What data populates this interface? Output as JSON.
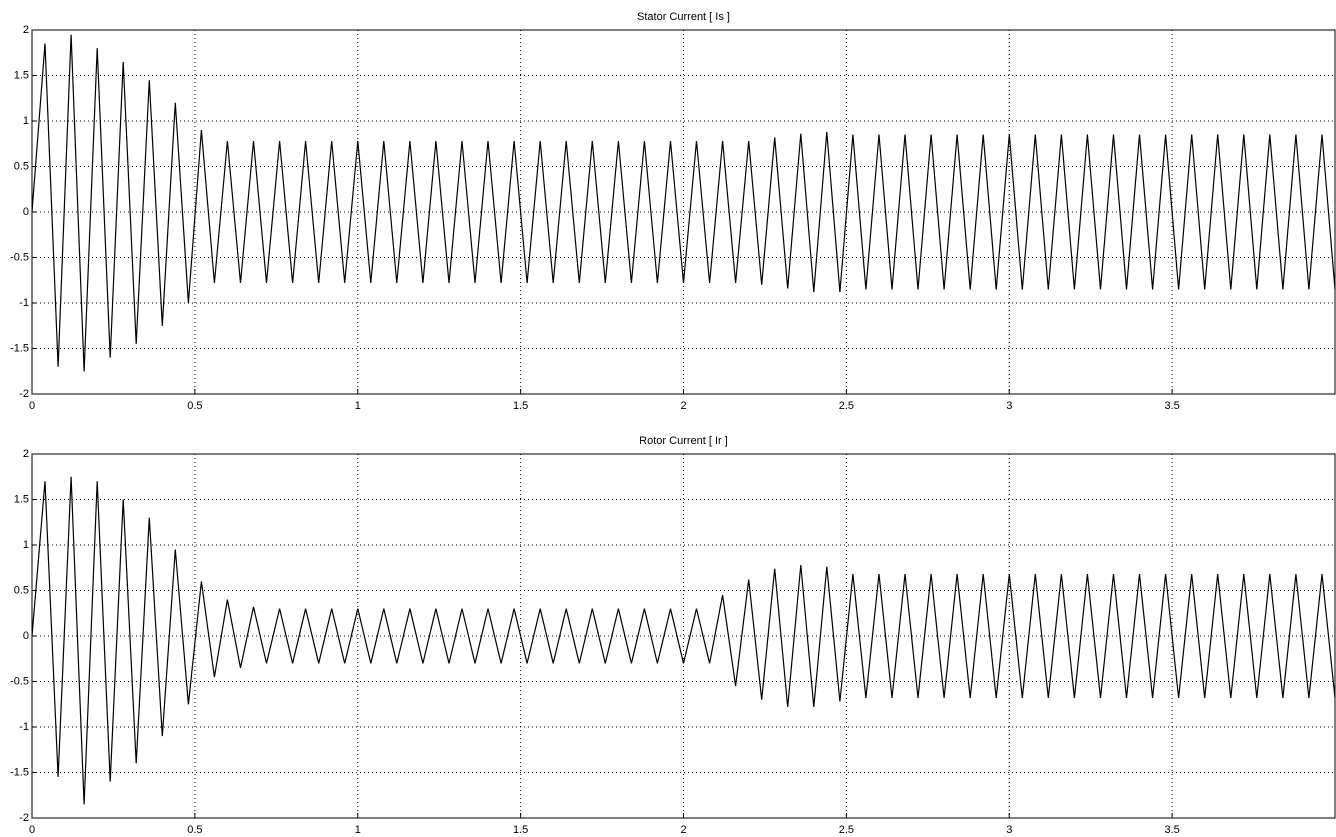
{
  "chart_data": [
    {
      "type": "line",
      "title": "Stator Current [ Is ]",
      "color": "#000000",
      "grid": true,
      "xlim": [
        0,
        4
      ],
      "ylim": [
        -2,
        2
      ],
      "xticks": [
        0,
        0.5,
        1,
        1.5,
        2,
        2.5,
        3,
        3.5
      ],
      "yticks": [
        -2,
        -1.5,
        -1,
        -0.5,
        0,
        0.5,
        1,
        1.5,
        2
      ],
      "x": [
        0,
        0.04,
        0.08,
        0.12,
        0.16,
        0.2,
        0.24,
        0.28,
        0.32,
        0.36,
        0.4,
        0.44,
        0.48,
        0.52,
        0.56,
        0.6,
        0.64,
        0.68,
        0.72,
        0.76,
        0.8,
        0.84,
        0.88,
        0.92,
        0.96,
        1,
        1.04,
        1.08,
        1.12,
        1.16,
        1.2,
        1.24,
        1.28,
        1.32,
        1.36,
        1.4,
        1.44,
        1.48,
        1.52,
        1.56,
        1.6,
        1.64,
        1.68,
        1.72,
        1.76,
        1.8,
        1.84,
        1.88,
        1.92,
        1.96,
        2,
        2.04,
        2.08,
        2.12,
        2.16,
        2.2,
        2.24,
        2.28,
        2.32,
        2.36,
        2.4,
        2.44,
        2.48,
        2.52,
        2.56,
        2.6,
        2.64,
        2.68,
        2.72,
        2.76,
        2.8,
        2.84,
        2.88,
        2.92,
        2.96,
        3,
        3.04,
        3.08,
        3.12,
        3.16,
        3.2,
        3.24,
        3.28,
        3.32,
        3.36,
        3.4,
        3.44,
        3.48,
        3.52,
        3.56,
        3.6,
        3.64,
        3.68,
        3.72,
        3.76,
        3.8,
        3.84,
        3.88,
        3.92,
        3.96,
        4
      ],
      "values": [
        0,
        1.85,
        -1.7,
        1.95,
        -1.75,
        1.8,
        -1.6,
        1.65,
        -1.45,
        1.45,
        -1.25,
        1.2,
        -1.0,
        0.9,
        -0.78,
        0.78,
        -0.78,
        0.78,
        -0.78,
        0.78,
        -0.78,
        0.78,
        -0.78,
        0.78,
        -0.78,
        0.78,
        -0.78,
        0.78,
        -0.78,
        0.78,
        -0.78,
        0.78,
        -0.78,
        0.78,
        -0.78,
        0.78,
        -0.78,
        0.78,
        -0.78,
        0.78,
        -0.78,
        0.78,
        -0.78,
        0.78,
        -0.78,
        0.78,
        -0.78,
        0.78,
        -0.78,
        0.78,
        -0.78,
        0.78,
        -0.78,
        0.78,
        -0.78,
        0.78,
        -0.8,
        0.82,
        -0.84,
        0.86,
        -0.88,
        0.88,
        -0.88,
        0.85,
        -0.85,
        0.85,
        -0.85,
        0.85,
        -0.85,
        0.85,
        -0.85,
        0.85,
        -0.85,
        0.85,
        -0.85,
        0.85,
        -0.85,
        0.85,
        -0.85,
        0.85,
        -0.85,
        0.85,
        -0.85,
        0.85,
        -0.85,
        0.85,
        -0.85,
        0.85,
        -0.85,
        0.85,
        -0.85,
        0.85,
        -0.85,
        0.85,
        -0.85,
        0.85,
        -0.85,
        0.85,
        -0.85,
        0.85,
        -0.85
      ]
    },
    {
      "type": "line",
      "title": "Rotor Current [ Ir ]",
      "color": "#000000",
      "grid": true,
      "xlim": [
        0,
        4
      ],
      "ylim": [
        -2,
        2
      ],
      "xticks": [
        0,
        0.5,
        1,
        1.5,
        2,
        2.5,
        3,
        3.5
      ],
      "yticks": [
        -2,
        -1.5,
        -1,
        -0.5,
        0,
        0.5,
        1,
        1.5,
        2
      ],
      "x": [
        0,
        0.04,
        0.08,
        0.12,
        0.16,
        0.2,
        0.24,
        0.28,
        0.32,
        0.36,
        0.4,
        0.44,
        0.48,
        0.52,
        0.56,
        0.6,
        0.64,
        0.68,
        0.72,
        0.76,
        0.8,
        0.84,
        0.88,
        0.92,
        0.96,
        1,
        1.04,
        1.08,
        1.12,
        1.16,
        1.2,
        1.24,
        1.28,
        1.32,
        1.36,
        1.4,
        1.44,
        1.48,
        1.52,
        1.56,
        1.6,
        1.64,
        1.68,
        1.72,
        1.76,
        1.8,
        1.84,
        1.88,
        1.92,
        1.96,
        2,
        2.04,
        2.08,
        2.12,
        2.16,
        2.2,
        2.24,
        2.28,
        2.32,
        2.36,
        2.4,
        2.44,
        2.48,
        2.52,
        2.56,
        2.6,
        2.64,
        2.68,
        2.72,
        2.76,
        2.8,
        2.84,
        2.88,
        2.92,
        2.96,
        3,
        3.04,
        3.08,
        3.12,
        3.16,
        3.2,
        3.24,
        3.28,
        3.32,
        3.36,
        3.4,
        3.44,
        3.48,
        3.52,
        3.56,
        3.6,
        3.64,
        3.68,
        3.72,
        3.76,
        3.8,
        3.84,
        3.88,
        3.92,
        3.96,
        4
      ],
      "values": [
        0,
        1.7,
        -1.55,
        1.75,
        -1.85,
        1.7,
        -1.6,
        1.5,
        -1.4,
        1.3,
        -1.1,
        0.95,
        -0.75,
        0.6,
        -0.45,
        0.4,
        -0.35,
        0.32,
        -0.3,
        0.3,
        -0.3,
        0.3,
        -0.3,
        0.3,
        -0.3,
        0.3,
        -0.3,
        0.3,
        -0.3,
        0.3,
        -0.3,
        0.3,
        -0.3,
        0.3,
        -0.3,
        0.3,
        -0.3,
        0.3,
        -0.3,
        0.3,
        -0.3,
        0.3,
        -0.3,
        0.3,
        -0.3,
        0.3,
        -0.3,
        0.3,
        -0.3,
        0.3,
        -0.3,
        0.3,
        -0.3,
        0.45,
        -0.55,
        0.62,
        -0.7,
        0.74,
        -0.78,
        0.78,
        -0.78,
        0.76,
        -0.72,
        0.68,
        -0.68,
        0.68,
        -0.68,
        0.68,
        -0.68,
        0.68,
        -0.68,
        0.68,
        -0.68,
        0.68,
        -0.68,
        0.68,
        -0.68,
        0.68,
        -0.68,
        0.68,
        -0.68,
        0.68,
        -0.68,
        0.68,
        -0.68,
        0.68,
        -0.68,
        0.68,
        -0.68,
        0.68,
        -0.68,
        0.68,
        -0.68,
        0.68,
        -0.68,
        0.68,
        -0.68,
        0.68,
        -0.68,
        0.68,
        -0.68
      ]
    }
  ]
}
